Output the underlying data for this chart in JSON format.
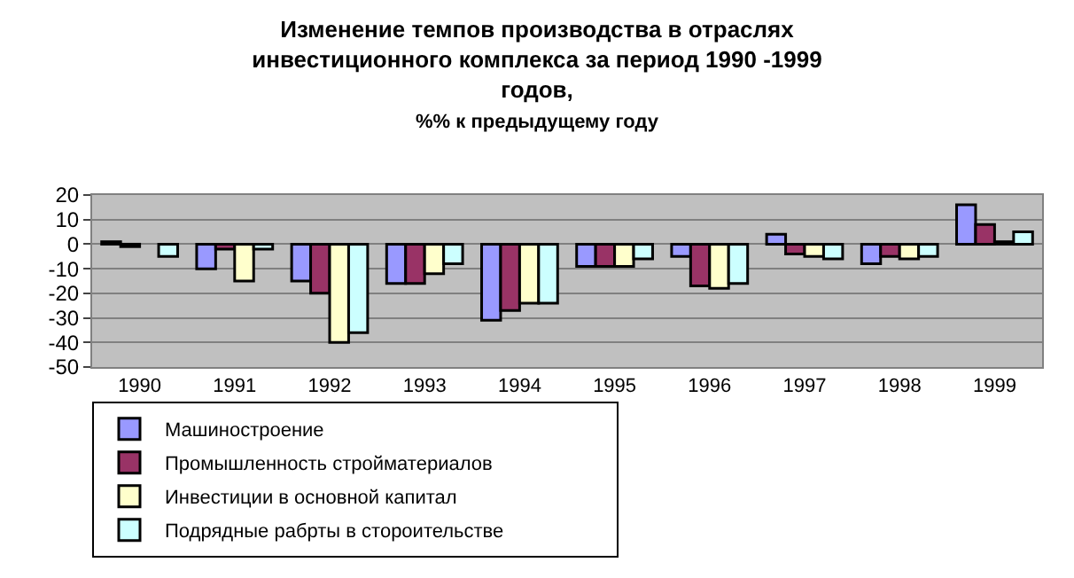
{
  "chart_data": {
    "type": "bar",
    "title": "Изменение темпов производства в отраслях инвестиционного комплекса за период 1990 -1999 годов,",
    "subtitle": "%% к предыдущему году",
    "categories": [
      "1990",
      "1991",
      "1992",
      "1993",
      "1994",
      "1995",
      "1996",
      "1997",
      "1998",
      "1999"
    ],
    "series": [
      {
        "name": "Машиностроение",
        "color": "#9999ff",
        "values": [
          1,
          -10,
          -15,
          -16,
          -31,
          -9,
          -5,
          4,
          -8,
          16
        ]
      },
      {
        "name": "Промышленность стройматериалов",
        "color": "#993366",
        "values": [
          -1,
          -2,
          -20,
          -16,
          -27,
          -9,
          -17,
          -4,
          -5,
          8
        ]
      },
      {
        "name": "Инвестиции в основной капитал",
        "color": "#ffffcc",
        "values": [
          null,
          -15,
          -40,
          -12,
          -24,
          -9,
          -18,
          -5,
          -6,
          1
        ]
      },
      {
        "name": "Подрядные рабрты в стороительстве",
        "color": "#ccffff",
        "values": [
          -5,
          -2,
          -36,
          -8,
          -24,
          -6,
          -16,
          -6,
          -5,
          5
        ]
      }
    ],
    "ylim": [
      -50,
      20
    ],
    "yticks": [
      -50,
      -40,
      -30,
      -20,
      -10,
      0,
      10,
      20
    ],
    "grid": "y",
    "legend": "bottom"
  }
}
